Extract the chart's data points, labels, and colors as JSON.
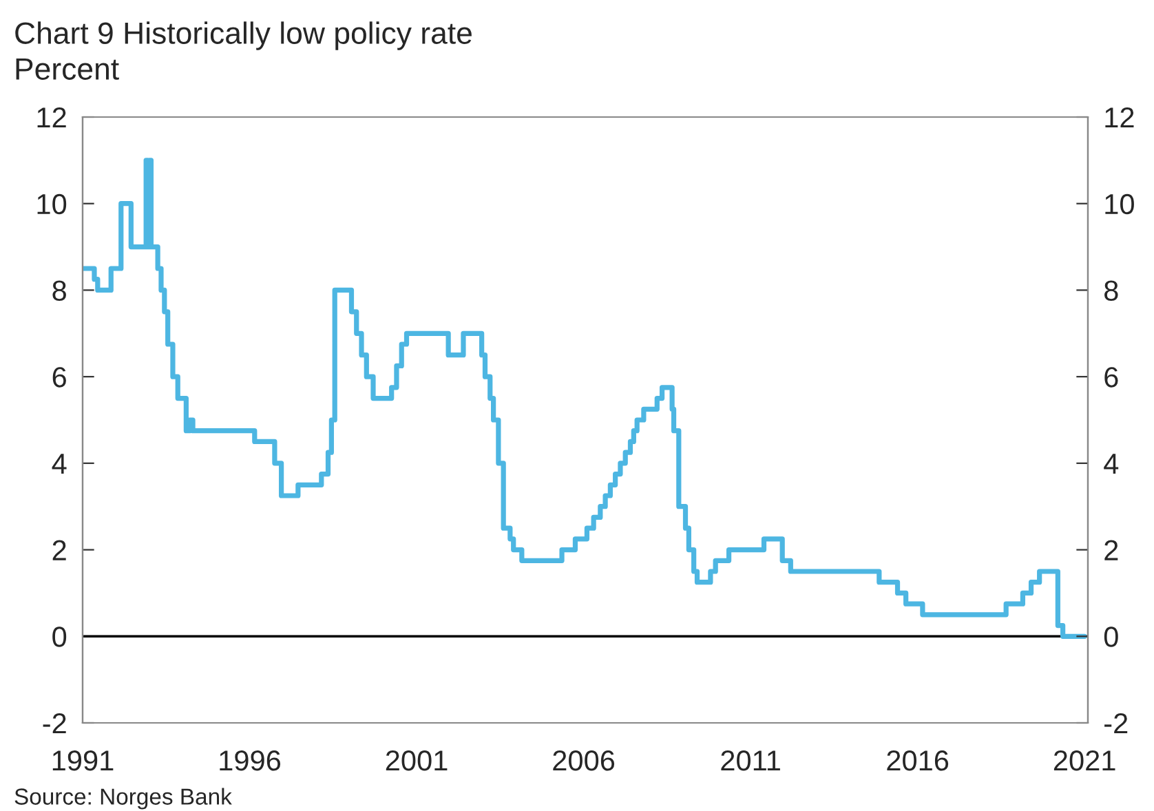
{
  "chart_data": {
    "type": "step",
    "title": "Chart 9 Historically low policy rate",
    "ylabel": "Percent",
    "annotations": [
      "Source: Norges Bank"
    ],
    "x": [
      1991.0,
      1991.35,
      1991.45,
      1991.85,
      1992.15,
      1992.45,
      1992.9,
      1992.95,
      1993.0,
      1993.05,
      1993.25,
      1993.35,
      1993.45,
      1993.55,
      1993.7,
      1993.85,
      1994.1,
      1994.2,
      1994.3,
      1996.15,
      1996.75,
      1996.95,
      1997.45,
      1998.15,
      1998.35,
      1998.45,
      1998.55,
      1999.05,
      1999.2,
      1999.35,
      1999.5,
      1999.7,
      2000.25,
      2000.4,
      2000.55,
      2000.7,
      2001.95,
      2002.4,
      2002.95,
      2003.05,
      2003.2,
      2003.3,
      2003.45,
      2003.6,
      2003.8,
      2003.9,
      2004.15,
      2005.35,
      2005.75,
      2006.1,
      2006.3,
      2006.5,
      2006.65,
      2006.8,
      2006.95,
      2007.1,
      2007.25,
      2007.4,
      2007.5,
      2007.6,
      2007.8,
      2008.2,
      2008.35,
      2008.65,
      2008.7,
      2008.85,
      2009.05,
      2009.15,
      2009.3,
      2009.4,
      2009.8,
      2009.95,
      2010.35,
      2011.4,
      2011.95,
      2012.2,
      2014.85,
      2015.4,
      2015.65,
      2016.15,
      2018.65,
      2019.15,
      2019.4,
      2019.65,
      2020.2,
      2020.35,
      2021.0
    ],
    "series": [
      {
        "color": "#4db6e2",
        "values": [
          8.5,
          8.25,
          8.0,
          8.5,
          10,
          9.0,
          11,
          9,
          11,
          9.0,
          8.5,
          8.0,
          7.5,
          6.75,
          6.0,
          5.5,
          4.75,
          5.0,
          4.75,
          4.5,
          4.0,
          3.25,
          3.5,
          3.75,
          4.25,
          5.0,
          8.0,
          7.5,
          7.0,
          6.5,
          6.0,
          5.5,
          5.75,
          6.25,
          6.75,
          7.0,
          6.5,
          7.0,
          6.5,
          6.0,
          5.5,
          5.0,
          4.0,
          2.5,
          2.25,
          2.0,
          1.75,
          2.0,
          2.25,
          2.5,
          2.75,
          3.0,
          3.25,
          3.5,
          3.75,
          4.0,
          4.25,
          4.5,
          4.75,
          5.0,
          5.25,
          5.5,
          5.75,
          5.25,
          4.75,
          3.0,
          2.5,
          2.0,
          1.5,
          1.25,
          1.5,
          1.75,
          2.0,
          2.25,
          1.75,
          1.5,
          1.25,
          1.0,
          0.75,
          0.5,
          0.75,
          1.0,
          1.25,
          1.5,
          0.25,
          0.0,
          0.0
        ]
      }
    ],
    "xlim": [
      1991,
      2021.1
    ],
    "xticks": [
      1991,
      1996,
      2001,
      2006,
      2011,
      2016,
      2021
    ],
    "ylim": [
      -2,
      12
    ],
    "yticks": [
      -2,
      0,
      2,
      4,
      6,
      8,
      10,
      12
    ],
    "y2lim": [
      -2,
      12
    ],
    "y2ticks": [
      -2,
      0,
      2,
      4,
      6,
      8,
      10,
      12
    ],
    "ref_lines": [
      {
        "axis": "y",
        "value": 0,
        "color": "#000000"
      }
    ],
    "grid": false,
    "legend": false
  }
}
